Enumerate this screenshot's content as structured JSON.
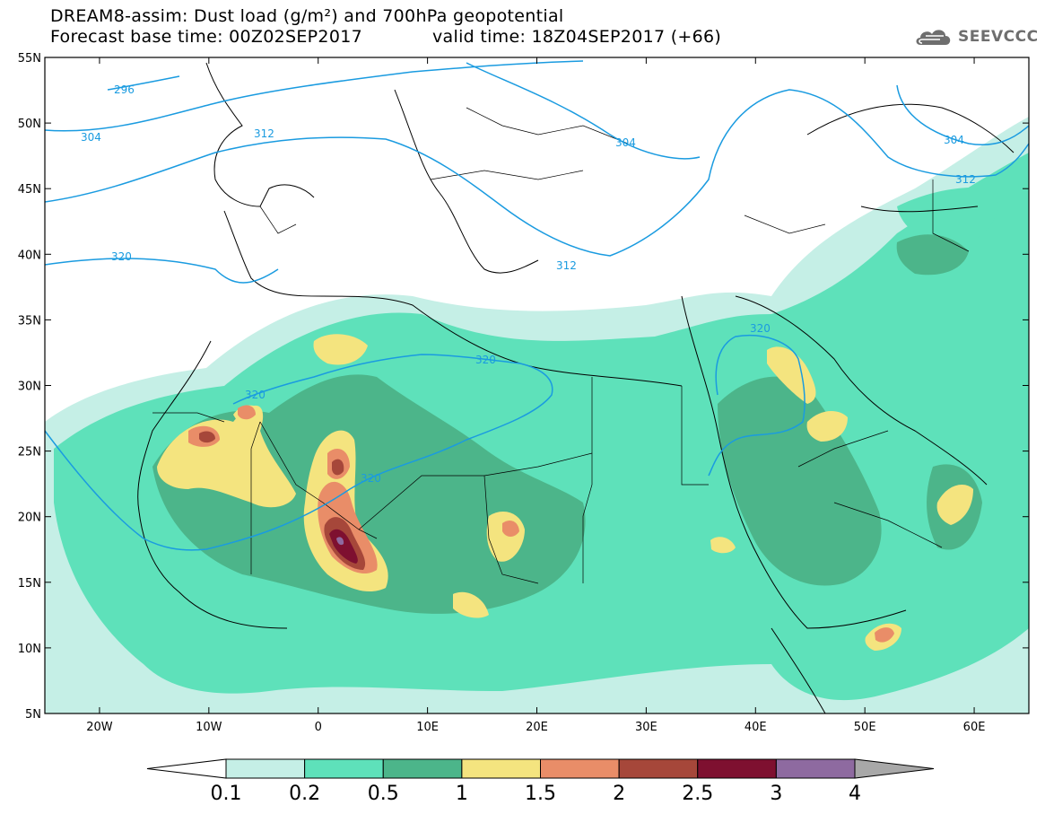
{
  "header": {
    "title": "DREAM8-assim: Dust load (g/m²) and 700hPa geopotential",
    "base_time": "Forecast base time: 00Z02SEP2017",
    "valid_time": "valid time: 18Z04SEP2017 (+66)",
    "logo_text": "SEEVCCC",
    "logo_icon": "cloud-logo-icon"
  },
  "map": {
    "lon_range": [
      -25,
      65
    ],
    "lat_range": [
      5,
      55
    ],
    "lat_ticks": [
      "55N",
      "50N",
      "45N",
      "40N",
      "35N",
      "30N",
      "25N",
      "20N",
      "15N",
      "10N",
      "5N"
    ],
    "lon_ticks": [
      "20W",
      "10W",
      "0",
      "10E",
      "20E",
      "30E",
      "40E",
      "50E",
      "60E"
    ],
    "contour_labels": [
      "296",
      "304",
      "312",
      "320",
      "320",
      "320",
      "320",
      "320",
      "304",
      "312",
      "304",
      "312",
      "320"
    ],
    "contour_color": "#1a9be0"
  },
  "colorbar": {
    "labels": [
      "0.1",
      "0.2",
      "0.5",
      "1",
      "1.5",
      "2",
      "2.5",
      "3",
      "4"
    ],
    "colors": [
      "#ffffff",
      "#c5efe6",
      "#5ee1ba",
      "#4cb58a",
      "#f4e47f",
      "#e98d68",
      "#a6473a",
      "#7e1030",
      "#8e6aa0",
      "#a8a8a8"
    ]
  }
}
